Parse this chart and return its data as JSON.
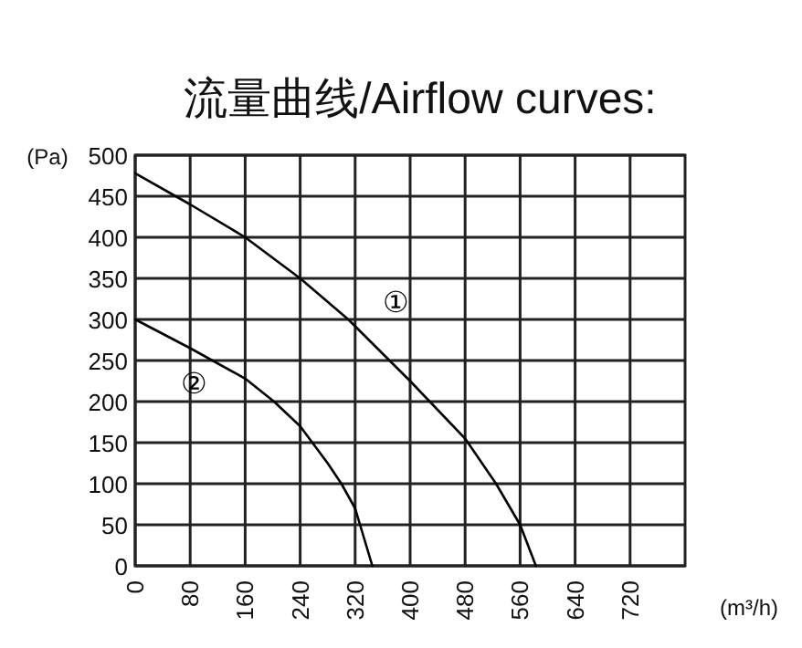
{
  "chart_data": {
    "type": "line",
    "title": "流量曲线/Airflow curves:",
    "xlabel": "(m³/h)",
    "ylabel": "(Pa)",
    "xlim": [
      0,
      800
    ],
    "xticks": [
      0,
      80,
      160,
      240,
      320,
      400,
      480,
      560,
      640,
      720
    ],
    "ylim": [
      0,
      500
    ],
    "yticks": [
      0,
      50,
      100,
      150,
      200,
      250,
      300,
      350,
      400,
      450,
      500
    ],
    "grid": true,
    "marker": "none",
    "line_style": "solid",
    "series": [
      {
        "name": "①",
        "color": "#000000",
        "x": [
          0,
          80,
          160,
          240,
          310,
          400,
          480,
          525,
          560,
          583
        ],
        "values": [
          478,
          440,
          400,
          350,
          300,
          225,
          155,
          100,
          50,
          0
        ]
      },
      {
        "name": "②",
        "color": "#000000",
        "x": [
          0,
          80,
          160,
          202,
          240,
          280,
          300,
          320,
          345
        ],
        "values": [
          300,
          265,
          228,
          200,
          170,
          125,
          100,
          70,
          0
        ]
      }
    ]
  }
}
